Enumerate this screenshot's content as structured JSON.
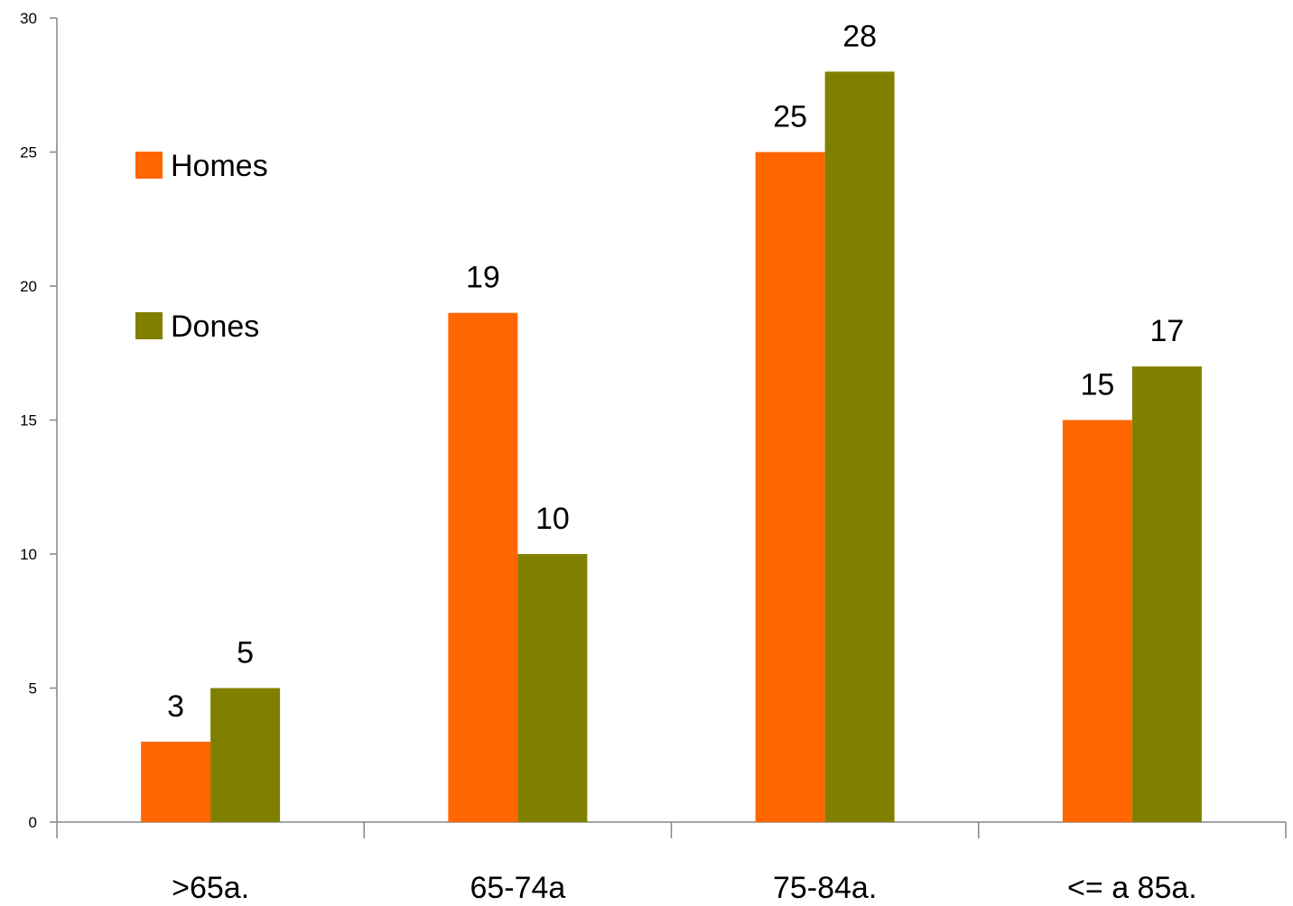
{
  "chart_data": {
    "type": "bar",
    "title": "",
    "xlabel": "",
    "ylabel": "",
    "categories": [
      ">65a.",
      "65-74a",
      "75-84a.",
      "<= a 85a."
    ],
    "series": [
      {
        "name": "Homes",
        "values": [
          3,
          19,
          25,
          15
        ],
        "color": "#ff6600"
      },
      {
        "name": "Dones",
        "values": [
          5,
          10,
          28,
          17
        ],
        "color": "#808000"
      }
    ],
    "ylim": [
      0,
      30
    ],
    "yticks": [
      0,
      5,
      10,
      15,
      20,
      25,
      30
    ],
    "grid": false,
    "legend_position": "upper-left"
  }
}
